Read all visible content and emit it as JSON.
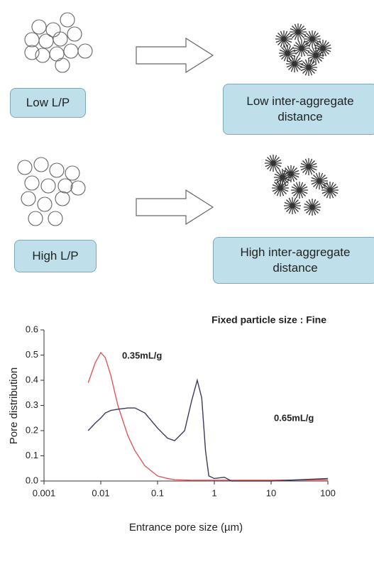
{
  "diagram": {
    "rows": [
      {
        "left_label": "Low L/P",
        "right_label": "Low inter-aggregate distance"
      },
      {
        "left_label": "High L/P",
        "right_label": "High inter-aggregate distance"
      }
    ]
  },
  "chart_data": {
    "type": "line",
    "title": "Fixed particle size : Fine",
    "x_label": "Entrance pore size (µm)",
    "y_label": "Pore distribution",
    "x": [
      0.006,
      0.008,
      0.01,
      0.012,
      0.015,
      0.02,
      0.03,
      0.04,
      0.06,
      0.1,
      0.15,
      0.2,
      0.3,
      0.4,
      0.5,
      0.6,
      0.7,
      0.8,
      1,
      1.5,
      2,
      10,
      100
    ],
    "series": [
      {
        "name": "0.35mL/g",
        "color": "#e0575a",
        "values": [
          0.39,
          0.47,
          0.51,
          0.49,
          0.42,
          0.3,
          0.18,
          0.12,
          0.06,
          0.02,
          0.01,
          0.005,
          0.004,
          0.003,
          0.003,
          0.003,
          0.003,
          0.003,
          0.003,
          0.003,
          0.003,
          0.003,
          0.005
        ]
      },
      {
        "name": "0.65mL/g",
        "color": "#3a3a5a",
        "values": [
          0.2,
          0.23,
          0.25,
          0.27,
          0.28,
          0.285,
          0.29,
          0.29,
          0.27,
          0.21,
          0.17,
          0.16,
          0.2,
          0.32,
          0.4,
          0.33,
          0.12,
          0.02,
          0.01,
          0.015,
          0.0,
          0.0,
          0.01
        ]
      }
    ],
    "x_log": true,
    "xlim": [
      0.001,
      100
    ],
    "xticks": [
      0.001,
      0.01,
      0.1,
      1,
      10,
      100
    ],
    "ylim": [
      0,
      0.6
    ],
    "yticks": [
      {
        "value": 0,
        "label": "0.0"
      },
      0.1,
      0.2,
      0.3,
      0.4,
      0.5,
      0.6
    ],
    "grid": false
  }
}
